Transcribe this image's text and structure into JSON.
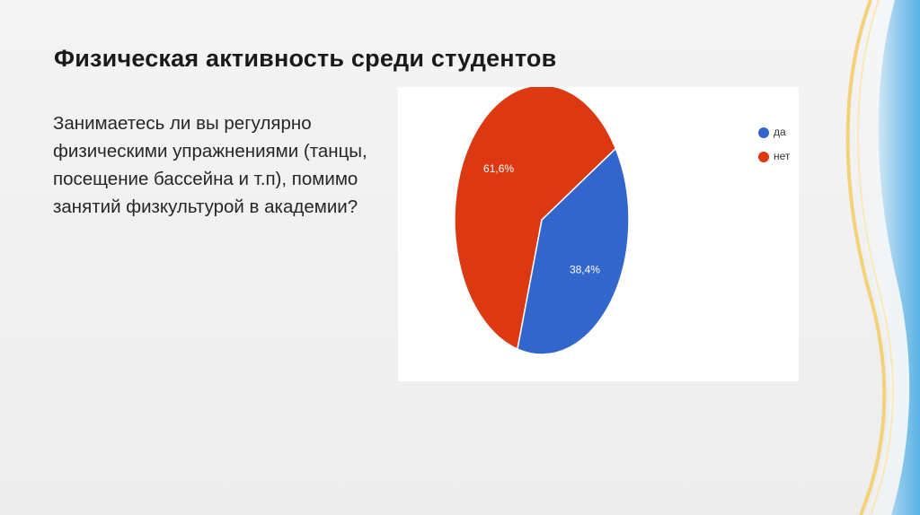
{
  "slide": {
    "title": "Физическая активность среди студентов",
    "question": "Занимаетесь ли вы регулярно физическими упражнениями (танцы, посещение бассейна и т.п), помимо занятий физкультурой в академии?"
  },
  "colors": {
    "yes": "#3366cc",
    "no": "#dc3912"
  },
  "chart_data": {
    "type": "pie",
    "title": "",
    "legend_position": "top-right",
    "slices": [
      {
        "label": "да",
        "value": 38.4,
        "display": "38,4%",
        "color": "#3366cc"
      },
      {
        "label": "нет",
        "value": 61.6,
        "display": "61,6%",
        "color": "#dc3912"
      }
    ]
  }
}
